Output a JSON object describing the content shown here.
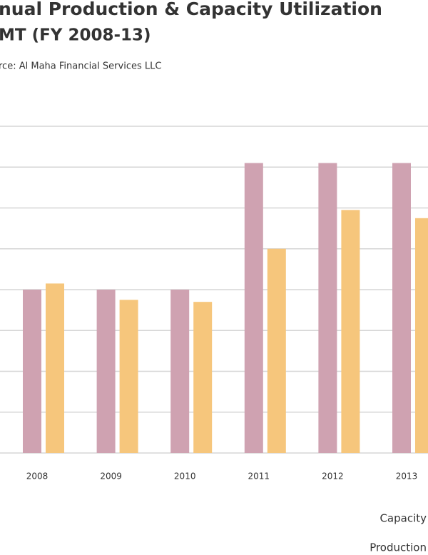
{
  "chart_data": {
    "type": "bar",
    "title": "nual Production & Capacity Utilization",
    "subtitle": "MT (FY 2008-13)",
    "source": "rce: Al Maha Financial Services LLC",
    "categories": [
      "2008",
      "2009",
      "2010",
      "2011",
      "2012",
      "2013"
    ],
    "series": [
      {
        "name": "Capacity",
        "color": "#cfa2b1",
        "values": [
          4,
          4,
          4,
          7.1,
          7.1,
          7.1
        ]
      },
      {
        "name": "Production",
        "color": "#f6c67c",
        "values": [
          4.15,
          3.75,
          3.7,
          5.0,
          5.95,
          5.75
        ]
      }
    ],
    "ylim": [
      0,
      8
    ],
    "yticks": [
      0,
      1,
      2,
      3,
      4,
      5,
      6,
      7,
      8
    ],
    "grid": true
  }
}
